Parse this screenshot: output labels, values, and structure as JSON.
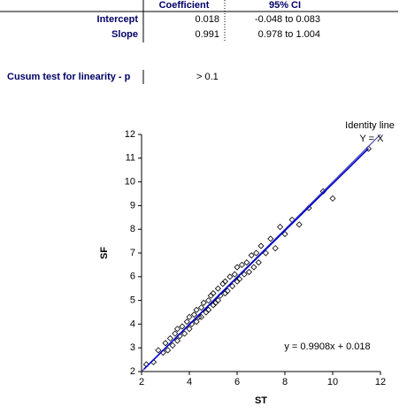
{
  "table": {
    "header": [
      "Coefficient",
      "95% CI"
    ],
    "rows": [
      [
        "Intercept",
        "0.018",
        "-0.048 to 0.083"
      ],
      [
        "Slope",
        "0.991",
        "0.978 to 1.004"
      ]
    ]
  },
  "cusum": {
    "label": "Cusum test for linearity - p",
    "value": "> 0.1"
  },
  "chart_data": {
    "type": "scatter",
    "xlabel": "ST",
    "ylabel": "SF",
    "annotations": [
      "Identity line",
      "Y = X",
      "y = 0.9908x + 0.018"
    ],
    "xlim": [
      2,
      12
    ],
    "ylim": [
      2,
      12
    ],
    "xticks": [
      2,
      4,
      6,
      8,
      10,
      12
    ],
    "yticks": [
      2,
      3,
      4,
      5,
      6,
      7,
      8,
      9,
      10,
      11,
      12
    ],
    "marker_color": "#000000",
    "x": [
      2.2,
      2.5,
      2.7,
      2.9,
      3.0,
      3.1,
      3.2,
      3.3,
      3.4,
      3.5,
      3.5,
      3.6,
      3.7,
      3.8,
      3.9,
      4.0,
      4.0,
      4.1,
      4.2,
      4.3,
      4.3,
      4.4,
      4.5,
      4.5,
      4.6,
      4.7,
      4.8,
      4.8,
      4.9,
      5.0,
      5.0,
      5.1,
      5.2,
      5.2,
      5.3,
      5.4,
      5.5,
      5.5,
      5.6,
      5.7,
      5.8,
      5.9,
      6.0,
      6.0,
      6.1,
      6.2,
      6.3,
      6.4,
      6.5,
      6.6,
      6.7,
      6.8,
      6.9,
      7.0,
      7.2,
      7.4,
      7.6,
      7.8,
      8.0,
      8.3,
      8.6,
      9.0,
      9.6,
      10.0,
      11.5
    ],
    "values": [
      2.3,
      2.4,
      2.9,
      2.8,
      3.2,
      2.9,
      3.4,
      3.1,
      3.6,
      3.3,
      3.8,
      3.5,
      3.9,
      3.6,
      4.1,
      3.8,
      4.3,
      4.0,
      4.4,
      4.1,
      4.6,
      4.3,
      4.7,
      4.3,
      4.9,
      4.5,
      5.0,
      4.6,
      5.2,
      4.8,
      5.3,
      4.9,
      5.5,
      5.0,
      5.2,
      5.7,
      5.3,
      5.8,
      5.4,
      6.0,
      5.6,
      6.1,
      5.8,
      6.4,
      5.9,
      6.5,
      6.1,
      6.6,
      6.2,
      6.9,
      6.4,
      7.0,
      6.6,
      7.3,
      7.0,
      7.6,
      7.2,
      8.1,
      7.8,
      8.4,
      8.2,
      8.9,
      9.6,
      9.3,
      11.4
    ],
    "fit_line": {
      "x": [
        2.1,
        11.5
      ],
      "values": [
        2.1,
        11.41
      ],
      "color": "#0000cc"
    },
    "identity_line": {
      "x": [
        2,
        12
      ],
      "values": [
        2,
        12
      ],
      "color": "#3333aa"
    }
  }
}
